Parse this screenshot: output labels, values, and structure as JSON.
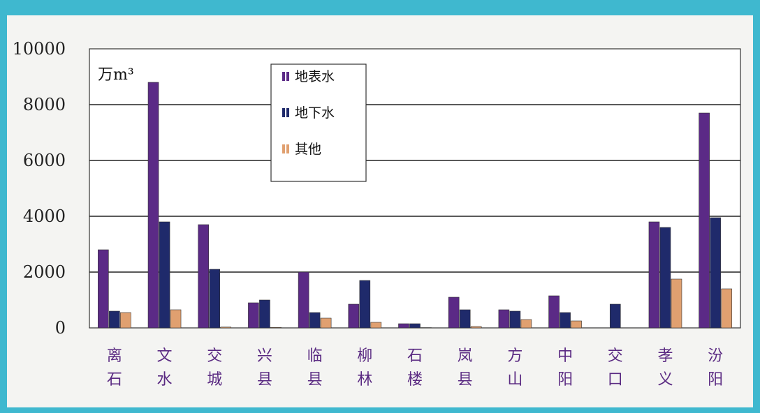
{
  "chart_data": {
    "type": "bar",
    "unit_label": "万m³",
    "categories": [
      "离石",
      "文水",
      "交城",
      "兴县",
      "临县",
      "柳林",
      "石楼",
      "岚县",
      "方山",
      "中阳",
      "交口",
      "孝义",
      "汾阳"
    ],
    "y_ticks": [
      "10000",
      "8000",
      "6000",
      "4000",
      "2000",
      "0"
    ],
    "ylim": [
      0,
      10000
    ],
    "grid": true,
    "legend_position": "top-center",
    "series": [
      {
        "name": "地表水",
        "color": "#5b2a86",
        "values": [
          2800,
          8800,
          3700,
          900,
          2000,
          850,
          150,
          1100,
          650,
          1150,
          0,
          3800,
          7700
        ]
      },
      {
        "name": "地下水",
        "color": "#1f2a6b",
        "values": [
          600,
          3800,
          2100,
          1000,
          550,
          1700,
          150,
          650,
          600,
          550,
          850,
          3600,
          3950
        ]
      },
      {
        "name": "其他",
        "color": "#e0a070",
        "values": [
          550,
          650,
          30,
          20,
          350,
          200,
          10,
          50,
          300,
          250,
          0,
          1750,
          1400
        ]
      }
    ]
  }
}
